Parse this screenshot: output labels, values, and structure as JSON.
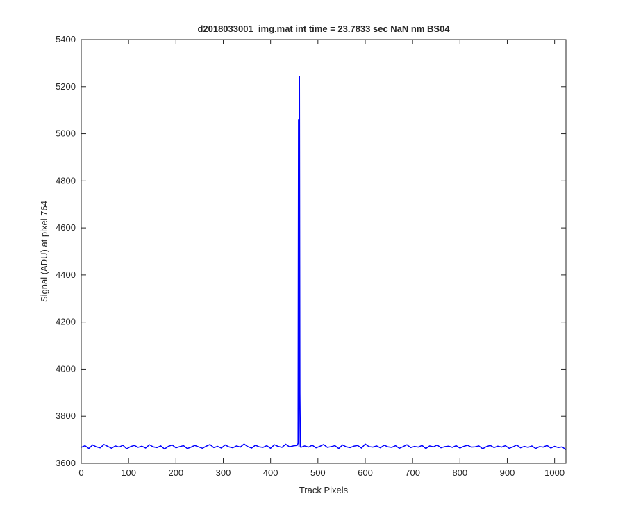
{
  "chart_data": {
    "type": "line",
    "title": "d2018033001_img.mat int time = 23.7833 sec  NaN nm BS04",
    "xlabel": "Track Pixels",
    "ylabel": "Signal (ADU) at pixel 764",
    "color": "#0000ff",
    "xlim": [
      0,
      1024
    ],
    "ylim": [
      3600,
      5400
    ],
    "xticks": [
      0,
      100,
      200,
      300,
      400,
      500,
      600,
      700,
      800,
      900,
      1000
    ],
    "yticks": [
      3600,
      3800,
      4000,
      4200,
      4400,
      4600,
      4800,
      5000,
      5200,
      5400
    ],
    "x": [
      0,
      8,
      16,
      24,
      32,
      40,
      48,
      56,
      64,
      72,
      80,
      88,
      96,
      104,
      112,
      120,
      128,
      136,
      144,
      152,
      160,
      168,
      176,
      184,
      192,
      200,
      208,
      216,
      224,
      232,
      240,
      248,
      256,
      264,
      272,
      280,
      288,
      296,
      304,
      312,
      320,
      328,
      336,
      344,
      352,
      360,
      368,
      376,
      384,
      392,
      400,
      408,
      416,
      424,
      432,
      440,
      448,
      456,
      458,
      459,
      460,
      461,
      462,
      463,
      464,
      472,
      480,
      488,
      496,
      504,
      512,
      520,
      528,
      536,
      544,
      552,
      560,
      568,
      576,
      584,
      592,
      600,
      608,
      616,
      624,
      632,
      640,
      648,
      656,
      664,
      672,
      680,
      688,
      696,
      704,
      712,
      720,
      728,
      736,
      744,
      752,
      760,
      768,
      776,
      784,
      792,
      800,
      808,
      816,
      824,
      832,
      840,
      848,
      856,
      864,
      872,
      880,
      888,
      896,
      904,
      912,
      920,
      928,
      936,
      944,
      952,
      960,
      968,
      976,
      984,
      992,
      1000,
      1008,
      1016,
      1024
    ],
    "values": [
      3668,
      3675,
      3663,
      3678,
      3670,
      3666,
      3680,
      3672,
      3664,
      3674,
      3669,
      3677,
      3662,
      3671,
      3676,
      3668,
      3673,
      3665,
      3679,
      3670,
      3667,
      3674,
      3661,
      3672,
      3678,
      3666,
      3671,
      3675,
      3663,
      3669,
      3676,
      3670,
      3664,
      3673,
      3680,
      3667,
      3672,
      3665,
      3678,
      3670,
      3666,
      3674,
      3669,
      3682,
      3671,
      3665,
      3677,
      3670,
      3668,
      3675,
      3664,
      3679,
      3672,
      3668,
      3681,
      3670,
      3674,
      3676,
      3685,
      5060,
      3670,
      5245,
      3900,
      3672,
      3668,
      3674,
      3669,
      3677,
      3666,
      3672,
      3680,
      3668,
      3671,
      3675,
      3663,
      3678,
      3670,
      3667,
      3673,
      3676,
      3665,
      3682,
      3671,
      3669,
      3674,
      3666,
      3677,
      3670,
      3668,
      3675,
      3664,
      3671,
      3679,
      3667,
      3672,
      3669,
      3676,
      3663,
      3674,
      3670,
      3678,
      3666,
      3671,
      3673,
      3668,
      3675,
      3665,
      3672,
      3677,
      3669,
      3670,
      3674,
      3662,
      3671,
      3676,
      3667,
      3673,
      3669,
      3675,
      3664,
      3670,
      3678,
      3666,
      3672,
      3668,
      3674,
      3663,
      3671,
      3669,
      3676,
      3665,
      3672,
      3667,
      3670,
      3658
    ]
  }
}
